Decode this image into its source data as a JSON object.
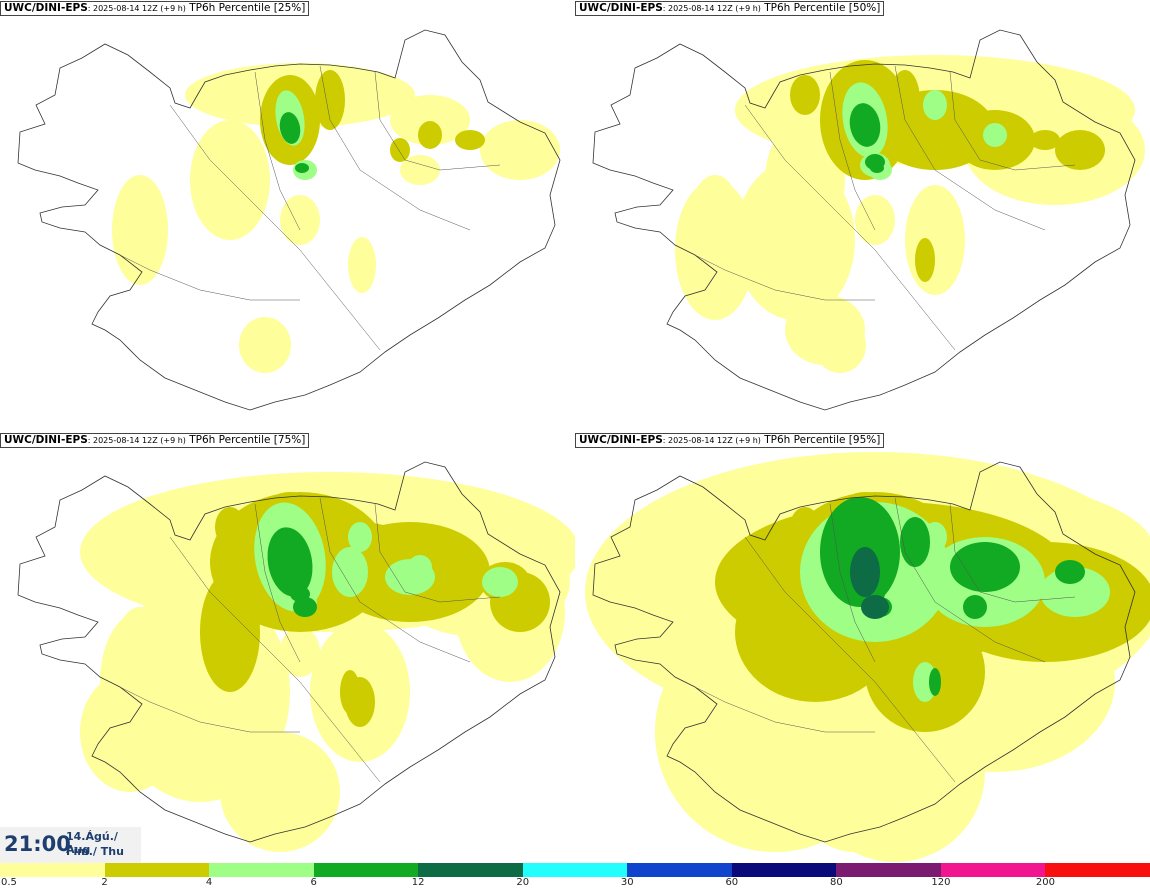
{
  "panels": [
    {
      "model": "UWC/DINI-EPS",
      "init": ": 2025-08-14 12Z (+9 h)",
      "field": " TP6h Percentile [25%]",
      "level": 1
    },
    {
      "model": "UWC/DINI-EPS",
      "init": ": 2025-08-14 12Z (+9 h)",
      "field": " TP6h Percentile [50%]",
      "level": 2
    },
    {
      "model": "UWC/DINI-EPS",
      "init": ": 2025-08-14 12Z (+9 h)",
      "field": " TP6h Percentile [75%]",
      "level": 3
    },
    {
      "model": "UWC/DINI-EPS",
      "init": ": 2025-08-14 12Z (+9 h)",
      "field": " TP6h Percentile [95%]",
      "level": 4
    }
  ],
  "valid": {
    "time": "21:00",
    "date_line": "14.Ágú./ Aug",
    "day_line": "Fim./ Thu"
  },
  "legend": {
    "ticks": [
      "0.5",
      "2",
      "4",
      "6",
      "12",
      "20",
      "30",
      "60",
      "80",
      "120",
      "200"
    ],
    "colors": [
      "#fefe9a",
      "#cccc00",
      "#9efe86",
      "#11aa22",
      "#0d6b46",
      "#22fefe",
      "#1144cc",
      "#0a0a78",
      "#7a1a70",
      "#f11690",
      "#f81010"
    ]
  }
}
